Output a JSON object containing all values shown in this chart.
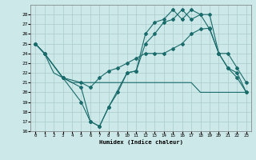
{
  "xlabel": "Humidex (Indice chaleur)",
  "xlim": [
    -0.5,
    23.5
  ],
  "ylim": [
    16,
    29
  ],
  "yticks": [
    16,
    17,
    18,
    19,
    20,
    21,
    22,
    23,
    24,
    25,
    26,
    27,
    28
  ],
  "xticks": [
    0,
    1,
    2,
    3,
    4,
    5,
    6,
    7,
    8,
    9,
    10,
    11,
    12,
    13,
    14,
    15,
    16,
    17,
    18,
    19,
    20,
    21,
    22,
    23
  ],
  "background_color": "#cce8e8",
  "grid_color": "#aacccc",
  "line_color": "#1a6b6b",
  "series": {
    "line1_x": [
      0,
      1,
      2,
      3,
      4,
      5,
      6,
      7,
      8,
      9,
      10,
      11,
      12,
      13,
      14,
      15,
      16,
      17,
      18,
      19,
      20,
      21,
      22,
      23
    ],
    "line1_y": [
      25,
      24,
      22,
      21.5,
      21,
      21,
      21,
      21,
      21,
      21,
      21,
      21,
      21,
      21,
      21,
      21,
      21,
      21,
      20,
      20,
      20,
      20,
      20,
      20
    ],
    "line2_x": [
      0,
      1,
      3,
      5,
      6,
      7,
      8,
      9,
      10,
      11,
      12,
      13,
      14,
      15,
      16,
      17,
      18,
      19,
      20,
      21,
      22,
      23
    ],
    "line2_y": [
      25,
      24,
      21.5,
      21,
      20.5,
      21.5,
      22.2,
      22.5,
      23,
      23.5,
      24,
      24,
      24,
      24.5,
      25,
      26,
      26.5,
      26.6,
      24,
      22.5,
      22,
      20
    ],
    "line3_x": [
      0,
      1,
      3,
      5,
      6,
      7,
      8,
      9,
      10,
      11,
      12,
      13,
      14,
      15,
      16,
      17,
      18,
      19,
      20,
      21,
      22,
      23
    ],
    "line3_y": [
      25,
      24,
      21.5,
      19,
      17,
      16.5,
      18.5,
      20,
      22,
      22.2,
      25,
      26,
      27.2,
      27.5,
      28.5,
      27.5,
      28,
      28,
      24,
      22.5,
      21.5,
      20
    ],
    "line4_x": [
      0,
      1,
      3,
      5,
      6,
      7,
      8,
      10,
      11,
      12,
      13,
      14,
      15,
      16,
      17,
      18,
      19,
      20,
      21,
      22,
      23
    ],
    "line4_y": [
      25,
      24,
      21.5,
      20.5,
      17,
      16.5,
      18.5,
      22,
      22.2,
      26,
      27.2,
      27.5,
      28.5,
      27.5,
      28.5,
      28,
      26.5,
      24,
      24,
      22.5,
      21
    ]
  }
}
